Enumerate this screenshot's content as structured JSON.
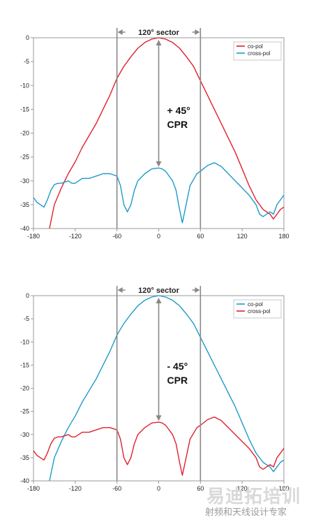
{
  "chart_data": [
    {
      "type": "line",
      "xlim": [
        -180,
        180
      ],
      "ylim": [
        -40,
        0
      ],
      "x_ticks": [
        "-180",
        "-120",
        "-60",
        "0",
        "60",
        "120",
        "180"
      ],
      "y_ticks": [
        "0",
        "-5",
        "-10",
        "-15",
        "-20",
        "-25",
        "-30",
        "-35",
        "-40"
      ],
      "grid": false,
      "legend_position": "top-right",
      "sector_label": "120° sector",
      "sector_bounds": [
        -60,
        60
      ],
      "cpr_label_line1": "+ 45°",
      "cpr_label_line2": "CPR",
      "cpr_arrow_range": [
        0,
        -27.5
      ],
      "series": [
        {
          "name": "co-pol",
          "color": "#e0202e",
          "x": [
            -157,
            -150,
            -140,
            -130,
            -120,
            -110,
            -100,
            -90,
            -80,
            -70,
            -60,
            -50,
            -40,
            -30,
            -20,
            -10,
            0,
            10,
            20,
            30,
            40,
            50,
            60,
            70,
            80,
            90,
            100,
            110,
            120,
            130,
            140,
            150,
            160,
            165,
            170,
            175,
            180
          ],
          "y": [
            -40,
            -35,
            -31.5,
            -28.5,
            -26,
            -23,
            -20.5,
            -18,
            -15,
            -12,
            -8.5,
            -6,
            -4,
            -2.2,
            -1,
            -0.3,
            0,
            -0.3,
            -1,
            -2.2,
            -4,
            -6,
            -9,
            -12,
            -15,
            -18,
            -21,
            -24,
            -27.5,
            -31,
            -34,
            -36,
            -37,
            -38,
            -37,
            -36,
            -35.5
          ]
        },
        {
          "name": "cross-pol",
          "color": "#1f9ac9",
          "x": [
            -180,
            -175,
            -170,
            -165,
            -160,
            -155,
            -150,
            -145,
            -140,
            -130,
            -125,
            -120,
            -110,
            -100,
            -90,
            -80,
            -70,
            -60,
            -55,
            -50,
            -45,
            -40,
            -35,
            -30,
            -20,
            -10,
            0,
            5,
            10,
            20,
            25,
            30,
            34,
            38,
            45,
            55,
            60,
            70,
            80,
            90,
            100,
            110,
            120,
            130,
            140,
            145,
            150,
            160,
            165,
            170,
            175,
            180
          ],
          "y": [
            -33.5,
            -34.5,
            -35,
            -35.5,
            -34,
            -32,
            -30.8,
            -30.5,
            -30.5,
            -30,
            -30.5,
            -30.5,
            -29.5,
            -29.5,
            -29,
            -28.5,
            -28.5,
            -29,
            -31,
            -35,
            -36.5,
            -35,
            -32,
            -30,
            -28.5,
            -27.5,
            -27.3,
            -27.5,
            -28,
            -30,
            -32,
            -36,
            -38.8,
            -36,
            -31,
            -28.5,
            -28,
            -26.8,
            -26.2,
            -27,
            -28.5,
            -30,
            -31.5,
            -33,
            -35,
            -37,
            -37.5,
            -36.5,
            -37,
            -35,
            -34,
            -33
          ]
        }
      ]
    },
    {
      "type": "line",
      "xlim": [
        -180,
        180
      ],
      "ylim": [
        -40,
        0
      ],
      "x_ticks": [
        "-180",
        "-120",
        "-60",
        "0",
        "60",
        "120",
        "180"
      ],
      "y_ticks": [
        "0",
        "-5",
        "-10",
        "-15",
        "-20",
        "-25",
        "-30",
        "-35",
        "-40"
      ],
      "grid": false,
      "legend_position": "top-right",
      "sector_label": "120° sector",
      "sector_bounds": [
        -60,
        60
      ],
      "cpr_label_line1": "- 45°",
      "cpr_label_line2": "CPR",
      "cpr_arrow_range": [
        0,
        -27.5
      ],
      "series": [
        {
          "name": "co-pol",
          "color": "#1f9ac9",
          "x": [
            -157,
            -150,
            -140,
            -130,
            -120,
            -110,
            -100,
            -90,
            -80,
            -70,
            -60,
            -50,
            -40,
            -30,
            -20,
            -10,
            0,
            10,
            20,
            30,
            40,
            50,
            60,
            70,
            80,
            90,
            100,
            110,
            120,
            130,
            140,
            150,
            160,
            165,
            170,
            175,
            180
          ],
          "y": [
            -40,
            -35,
            -31.5,
            -28.5,
            -26,
            -23,
            -20.5,
            -18,
            -15,
            -12,
            -8.5,
            -6,
            -4,
            -2.2,
            -1,
            -0.3,
            0,
            -0.3,
            -1,
            -2.2,
            -4,
            -6,
            -9,
            -12,
            -15,
            -18,
            -21,
            -24,
            -27.5,
            -31,
            -34,
            -36,
            -37,
            -38,
            -37,
            -36,
            -35.5
          ]
        },
        {
          "name": "cross-pol",
          "color": "#e0202e",
          "x": [
            -180,
            -175,
            -170,
            -165,
            -160,
            -155,
            -150,
            -145,
            -140,
            -130,
            -125,
            -120,
            -110,
            -100,
            -90,
            -80,
            -70,
            -60,
            -55,
            -50,
            -45,
            -40,
            -35,
            -30,
            -20,
            -10,
            0,
            5,
            10,
            20,
            25,
            30,
            34,
            38,
            45,
            55,
            60,
            70,
            80,
            90,
            100,
            110,
            120,
            130,
            140,
            145,
            150,
            160,
            165,
            170,
            175,
            180
          ],
          "y": [
            -33.5,
            -34.5,
            -35,
            -35.5,
            -34,
            -32,
            -30.8,
            -30.5,
            -30.5,
            -30,
            -30.5,
            -30.5,
            -29.5,
            -29.5,
            -29,
            -28.5,
            -28.5,
            -29,
            -31,
            -35,
            -36.5,
            -35,
            -32,
            -30,
            -28.5,
            -27.5,
            -27.3,
            -27.5,
            -28,
            -30,
            -32,
            -36,
            -38.8,
            -36,
            -31,
            -28.5,
            -28,
            -26.8,
            -26.2,
            -27,
            -28.5,
            -30,
            -31.5,
            -33,
            -35,
            -37,
            -37.5,
            -36.5,
            -37,
            -35,
            -34,
            -33
          ]
        }
      ]
    }
  ],
  "watermark": {
    "main": "易迪拓培训",
    "sub": "射频和天线设计专家"
  }
}
